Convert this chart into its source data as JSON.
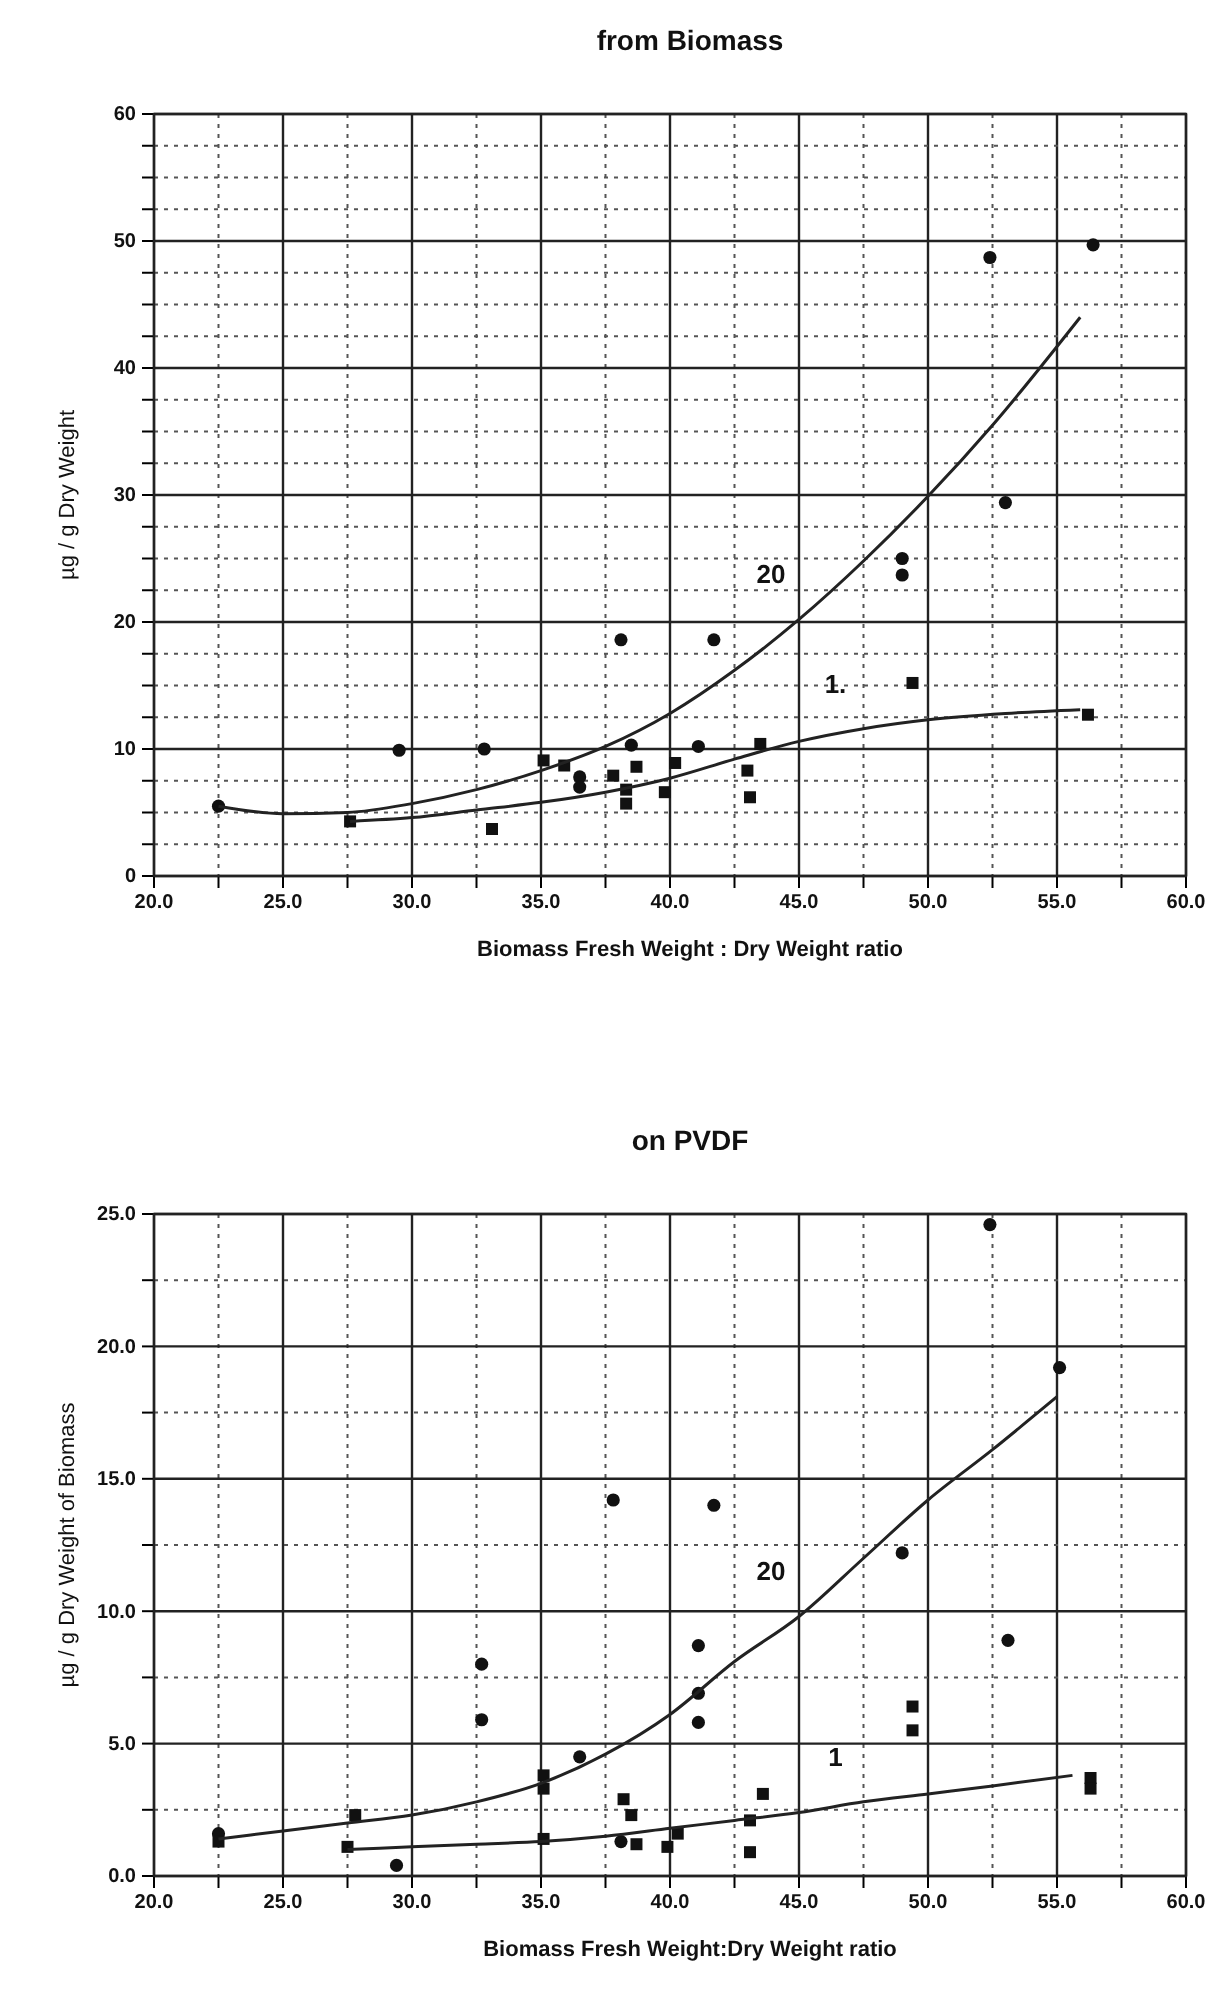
{
  "chart_data": [
    {
      "type": "scatter",
      "title": "from Biomass",
      "xlabel": "Biomass Fresh Weight : Dry Weight ratio",
      "ylabel": "µg / g Dry Weight",
      "xlim": [
        20,
        60
      ],
      "ylim": [
        0,
        60
      ],
      "xticks": [
        {
          "value": 20,
          "label": "20.0"
        },
        {
          "value": 22.5,
          "label": null
        },
        {
          "value": 25,
          "label": "25.0"
        },
        {
          "value": 27.5,
          "label": null
        },
        {
          "value": 30,
          "label": "30.0"
        },
        {
          "value": 32.5,
          "label": null
        },
        {
          "value": 35,
          "label": "35.0"
        },
        {
          "value": 37.5,
          "label": null
        },
        {
          "value": 40,
          "label": "40.0"
        },
        {
          "value": 42.5,
          "label": null
        },
        {
          "value": 45,
          "label": "45.0"
        },
        {
          "value": 47.5,
          "label": null
        },
        {
          "value": 50,
          "label": "50.0"
        },
        {
          "value": 52.5,
          "label": null
        },
        {
          "value": 55,
          "label": "55.0"
        },
        {
          "value": 57.5,
          "label": null
        },
        {
          "value": 60,
          "label": "60.0"
        }
      ],
      "yticks": [
        0,
        {
          "value": 2.5,
          "label": null
        },
        {
          "value": 5,
          "label": null
        },
        {
          "value": 7.5,
          "label": null
        },
        10,
        {
          "value": 12.5,
          "label": null
        },
        {
          "value": 15,
          "label": null
        },
        {
          "value": 17.5,
          "label": null
        },
        20,
        {
          "value": 22.5,
          "label": null
        },
        {
          "value": 25,
          "label": null
        },
        {
          "value": 27.5,
          "label": null
        },
        30,
        {
          "value": 32.5,
          "label": null
        },
        {
          "value": 35,
          "label": null
        },
        {
          "value": 37.5,
          "label": null
        },
        40,
        {
          "value": 42.5,
          "label": null
        },
        {
          "value": 45,
          "label": null
        },
        {
          "value": 47.5,
          "label": null
        },
        50,
        {
          "value": 52.5,
          "label": null
        },
        {
          "value": 55,
          "label": null
        },
        {
          "value": 57.5,
          "label": null
        },
        60
      ],
      "grid": true,
      "series": [
        {
          "marker": "circle",
          "color": "#111111",
          "x": [
            22.5,
            29.5,
            32.8,
            38.1,
            36.5,
            36.5,
            38.5,
            41.7,
            41.1,
            49.0,
            49.0,
            52.4,
            56.4,
            53.0
          ],
          "values": [
            5.5,
            9.9,
            10.0,
            18.6,
            7.8,
            7.0,
            10.3,
            18.6,
            10.2,
            25.0,
            23.7,
            48.7,
            49.7,
            29.4
          ]
        },
        {
          "marker": "square",
          "color": "#111111",
          "x": [
            27.6,
            33.1,
            35.1,
            35.9,
            37.8,
            38.3,
            38.3,
            38.7,
            39.8,
            40.2,
            43.0,
            43.1,
            43.5,
            49.4,
            56.2
          ],
          "values": [
            4.3,
            3.7,
            9.1,
            8.7,
            7.9,
            6.8,
            5.7,
            8.6,
            6.6,
            8.9,
            8.3,
            6.2,
            10.4,
            15.2,
            12.7
          ]
        },
        {
          "type": "line",
          "name": "20",
          "marker": "none",
          "color": "#222222",
          "x": [
            22.5,
            25,
            27.5,
            30,
            32.5,
            35,
            37.5,
            40,
            42.5,
            45,
            47.5,
            50,
            52.5,
            55.9
          ],
          "values": [
            5.5,
            4.9,
            5.0,
            5.7,
            6.8,
            8.3,
            10.2,
            12.8,
            16.2,
            20.2,
            24.8,
            29.9,
            35.5,
            44.0
          ]
        },
        {
          "type": "line",
          "name": "1.",
          "marker": "none",
          "color": "#222222",
          "x": [
            27.6,
            30,
            32.5,
            35,
            37.5,
            40,
            42.5,
            45,
            47.5,
            50,
            53,
            55.9
          ],
          "values": [
            4.3,
            4.6,
            5.2,
            5.8,
            6.6,
            7.7,
            9.2,
            10.6,
            11.6,
            12.3,
            12.8,
            13.1
          ]
        }
      ]
    },
    {
      "type": "scatter",
      "title": "on PVDF",
      "xlabel": "Biomass Fresh Weight:Dry Weight ratio",
      "ylabel": "µg / g Dry Weight of Biomass",
      "xlim": [
        20,
        60
      ],
      "ylim": [
        0,
        25
      ],
      "xticks": [
        {
          "value": 20,
          "label": "20.0"
        },
        {
          "value": 22.5,
          "label": null
        },
        {
          "value": 25,
          "label": "25.0"
        },
        {
          "value": 27.5,
          "label": null
        },
        {
          "value": 30,
          "label": "30.0"
        },
        {
          "value": 32.5,
          "label": null
        },
        {
          "value": 35,
          "label": "35.0"
        },
        {
          "value": 37.5,
          "label": null
        },
        {
          "value": 40,
          "label": "40.0"
        },
        {
          "value": 42.5,
          "label": null
        },
        {
          "value": 45,
          "label": "45.0"
        },
        {
          "value": 47.5,
          "label": null
        },
        {
          "value": 50,
          "label": "50.0"
        },
        {
          "value": 52.5,
          "label": null
        },
        {
          "value": 55,
          "label": "55.0"
        },
        {
          "value": 57.5,
          "label": null
        },
        {
          "value": 60,
          "label": "60.0"
        }
      ],
      "yticks": [
        {
          "value": 0,
          "label": "0.0"
        },
        {
          "value": 2.5,
          "label": null
        },
        {
          "value": 5,
          "label": "5.0"
        },
        {
          "value": 7.5,
          "label": null
        },
        {
          "value": 10,
          "label": "10.0"
        },
        {
          "value": 12.5,
          "label": null
        },
        {
          "value": 15,
          "label": "15.0"
        },
        {
          "value": 17.5,
          "label": null
        },
        {
          "value": 20,
          "label": "20.0"
        },
        {
          "value": 22.5,
          "label": null
        },
        {
          "value": 25,
          "label": "25.0"
        }
      ],
      "grid": true,
      "series": [
        {
          "marker": "circle",
          "color": "#111111",
          "x": [
            22.5,
            29.4,
            32.7,
            32.7,
            36.5,
            37.8,
            38.1,
            41.7,
            41.1,
            41.1,
            41.1,
            49.0,
            52.4,
            55.1,
            53.1
          ],
          "values": [
            1.6,
            0.4,
            8.0,
            5.9,
            4.5,
            14.2,
            1.3,
            14.0,
            8.7,
            6.9,
            5.8,
            12.2,
            24.6,
            19.2,
            8.9
          ]
        },
        {
          "marker": "square",
          "color": "#111111",
          "x": [
            22.5,
            27.5,
            27.8,
            35.1,
            35.1,
            35.1,
            38.2,
            38.5,
            38.7,
            39.9,
            40.3,
            43.1,
            43.1,
            43.6,
            49.4,
            49.4,
            56.3,
            56.3
          ],
          "values": [
            1.3,
            1.1,
            2.3,
            1.4,
            3.8,
            3.3,
            2.9,
            2.3,
            1.2,
            1.1,
            1.6,
            0.9,
            2.1,
            3.1,
            6.4,
            5.5,
            3.7,
            3.3
          ]
        },
        {
          "type": "line",
          "name": "20",
          "marker": "none",
          "color": "#222222",
          "x": [
            22.5,
            25,
            27.5,
            30,
            32.5,
            35,
            37.5,
            40,
            42.5,
            45,
            47.5,
            50,
            52.5,
            55
          ],
          "values": [
            1.4,
            1.7,
            2.0,
            2.3,
            2.8,
            3.5,
            4.6,
            6.1,
            8.1,
            9.8,
            12.0,
            14.2,
            16.1,
            18.1
          ]
        },
        {
          "type": "line",
          "name": "1",
          "marker": "none",
          "color": "#222222",
          "x": [
            27.5,
            30,
            32.5,
            35,
            37.5,
            40,
            42.5,
            45,
            47.5,
            50,
            52.5,
            55.6
          ],
          "values": [
            1.0,
            1.1,
            1.2,
            1.3,
            1.5,
            1.8,
            2.1,
            2.4,
            2.8,
            3.1,
            3.4,
            3.8
          ]
        }
      ]
    }
  ]
}
